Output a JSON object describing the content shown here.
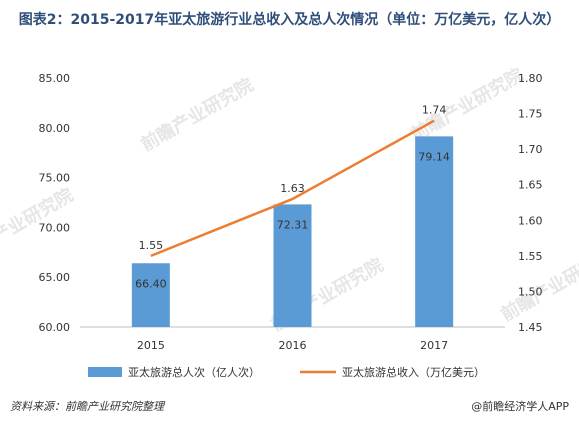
{
  "title": "图表2：2015-2017年亚太旅游行业总收入及总人次情况（单位：万亿美元，亿人次）",
  "source": "资料来源：前瞻产业研究院整理",
  "brand": "@前瞻经济学人APP",
  "watermark": "前瞻产业研究院",
  "colors": {
    "bar": "#5b9bd5",
    "line": "#ed7d31"
  },
  "chart_data": {
    "type": "bar",
    "categories": [
      "2015",
      "2016",
      "2017"
    ],
    "series": [
      {
        "name": "亚太旅游总人次（亿人次）",
        "type": "bar",
        "axis": "left",
        "values": [
          66.4,
          72.31,
          79.14
        ],
        "labels": [
          "66.40",
          "72.31",
          "79.14"
        ]
      },
      {
        "name": "亚太旅游总收入（万亿美元）",
        "type": "line",
        "axis": "right",
        "values": [
          1.55,
          1.63,
          1.74
        ],
        "labels": [
          "1.55",
          "1.63",
          "1.74"
        ]
      }
    ],
    "ylim_left": [
      60,
      85
    ],
    "ylim_right": [
      1.45,
      1.8
    ],
    "yticks_left": [
      "60.00",
      "65.00",
      "70.00",
      "75.00",
      "80.00",
      "85.00"
    ],
    "yticks_right": [
      "1.45",
      "1.50",
      "1.55",
      "1.60",
      "1.65",
      "1.70",
      "1.75",
      "1.80"
    ],
    "grid": false,
    "legend": "bottom"
  }
}
